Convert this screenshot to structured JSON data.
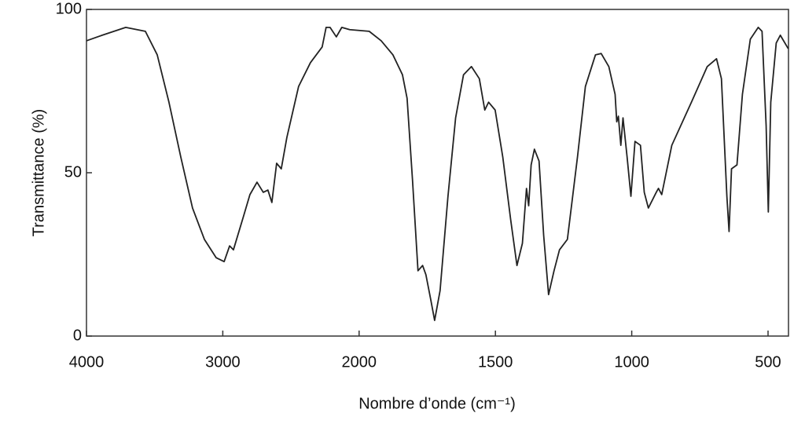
{
  "chart_data": {
    "type": "line",
    "xlabel": "Nombre d’onde (cm⁻¹)",
    "ylabel": "Transmittance (%)",
    "color": "#222222",
    "xlim": [
      4000,
      425
    ],
    "xticks": [
      4000,
      3000,
      2000,
      1500,
      1000,
      500
    ],
    "ylim": [
      0,
      100
    ],
    "yticks": [
      0,
      50,
      100
    ],
    "grid": false,
    "x": [
      4000,
      3885,
      3712,
      3568,
      3481,
      3395,
      3308,
      3222,
      3135,
      3049,
      2990,
      2950,
      2922,
      2847,
      2801,
      2749,
      2703,
      2669,
      2640,
      2605,
      2571,
      2530,
      2444,
      2357,
      2271,
      2242,
      2213,
      2167,
      2127,
      2069,
      1963,
      1919,
      1876,
      1841,
      1824,
      1804,
      1784,
      1767,
      1755,
      1738,
      1723,
      1703,
      1674,
      1646,
      1617,
      1588,
      1559,
      1539,
      1525,
      1501,
      1473,
      1444,
      1421,
      1401,
      1386,
      1378,
      1369,
      1357,
      1340,
      1323,
      1305,
      1285,
      1265,
      1236,
      1199,
      1170,
      1133,
      1112,
      1084,
      1061,
      1055,
      1049,
      1040,
      1032,
      1017,
      1003,
      988,
      968,
      954,
      939,
      910,
      902,
      890,
      853,
      781,
      723,
      689,
      671,
      651,
      643,
      634,
      614,
      594,
      565,
      536,
      522,
      507,
      499,
      490,
      470,
      455,
      426
    ],
    "values": [
      90.4,
      92.1,
      94.5,
      93.3,
      86.1,
      71.6,
      54.8,
      39.2,
      29.6,
      24.0,
      22.8,
      27.6,
      26.4,
      36.8,
      43.3,
      47.1,
      44.0,
      44.7,
      40.9,
      52.9,
      51.2,
      60.8,
      76.4,
      83.7,
      88.5,
      94.5,
      94.5,
      91.6,
      94.5,
      93.8,
      93.3,
      90.4,
      86.1,
      80.0,
      72.8,
      47.6,
      20.0,
      21.6,
      18.8,
      11.5,
      4.8,
      13.9,
      42.8,
      66.8,
      80.0,
      82.5,
      78.8,
      69.2,
      71.6,
      69.2,
      54.8,
      35.6,
      21.6,
      28.4,
      45.2,
      39.9,
      52.4,
      57.2,
      53.6,
      30.8,
      12.7,
      20.0,
      26.4,
      29.6,
      54.8,
      76.4,
      86.1,
      86.5,
      82.5,
      74.0,
      65.6,
      67.3,
      58.4,
      66.8,
      54.8,
      42.8,
      59.6,
      58.4,
      44.0,
      39.2,
      44.0,
      45.2,
      43.3,
      58.4,
      71.6,
      82.5,
      84.9,
      78.8,
      42.8,
      32.0,
      51.2,
      52.4,
      74.0,
      90.9,
      94.5,
      93.3,
      64.4,
      38.0,
      71.6,
      89.7,
      92.1,
      88.0
    ]
  }
}
